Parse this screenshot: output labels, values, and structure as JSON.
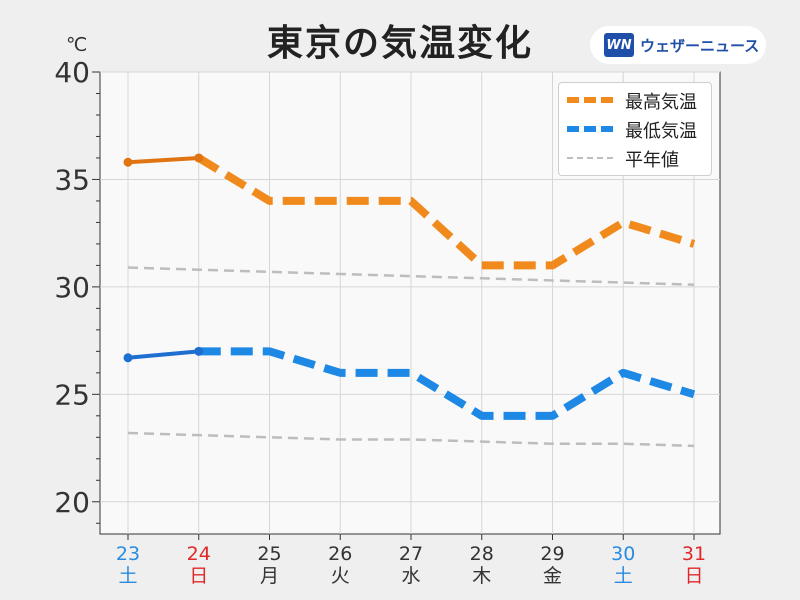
{
  "title": "東京の気温変化",
  "unit": "℃",
  "brand": {
    "mark": "WN",
    "name": "ウェザーニュース"
  },
  "colors": {
    "high": "#f08a1c",
    "high_dark": "#e07412",
    "low": "#1e88e5",
    "low_dark": "#1f6fd0",
    "normal": "#bdbdbd",
    "weekday": "#333333",
    "saturday": "#2a8ce0",
    "sunday": "#e0282a"
  },
  "chart_data": {
    "type": "line",
    "title": "東京の気温変化",
    "ylabel": "℃",
    "ylim": [
      18.5,
      40
    ],
    "yticks": [
      20,
      25,
      30,
      35,
      40
    ],
    "categories": [
      {
        "day": "23",
        "weekday": "土",
        "kind": "saturday"
      },
      {
        "day": "24",
        "weekday": "日",
        "kind": "sunday"
      },
      {
        "day": "25",
        "weekday": "月",
        "kind": "weekday"
      },
      {
        "day": "26",
        "weekday": "火",
        "kind": "weekday"
      },
      {
        "day": "27",
        "weekday": "水",
        "kind": "weekday"
      },
      {
        "day": "28",
        "weekday": "木",
        "kind": "weekday"
      },
      {
        "day": "29",
        "weekday": "金",
        "kind": "weekday"
      },
      {
        "day": "30",
        "weekday": "土",
        "kind": "saturday"
      },
      {
        "day": "31",
        "weekday": "日",
        "kind": "sunday"
      }
    ],
    "series": [
      {
        "name": "最高気温",
        "color": "#f08a1c",
        "observed_color": "#e07412",
        "values": [
          35.8,
          36.0,
          34.0,
          34.0,
          34.0,
          31.0,
          31.0,
          33.0,
          32.0
        ],
        "observed_count": 2
      },
      {
        "name": "最低気温",
        "color": "#1e88e5",
        "observed_color": "#1f6fd0",
        "values": [
          26.7,
          27.0,
          27.0,
          26.0,
          26.0,
          24.0,
          24.0,
          26.0,
          25.0
        ],
        "observed_count": 2
      },
      {
        "name": "平年値",
        "color": "#bdbdbd",
        "values": [
          30.9,
          30.8,
          30.7,
          30.6,
          30.5,
          30.4,
          30.3,
          30.2,
          30.1
        ]
      },
      {
        "name": "",
        "color": "#bdbdbd",
        "values": [
          23.2,
          23.1,
          23.0,
          22.9,
          22.9,
          22.8,
          22.7,
          22.7,
          22.6
        ]
      }
    ],
    "legend": [
      "最高気温",
      "最低気温",
      "平年値"
    ],
    "legend_position": "top-right",
    "grid": true
  }
}
